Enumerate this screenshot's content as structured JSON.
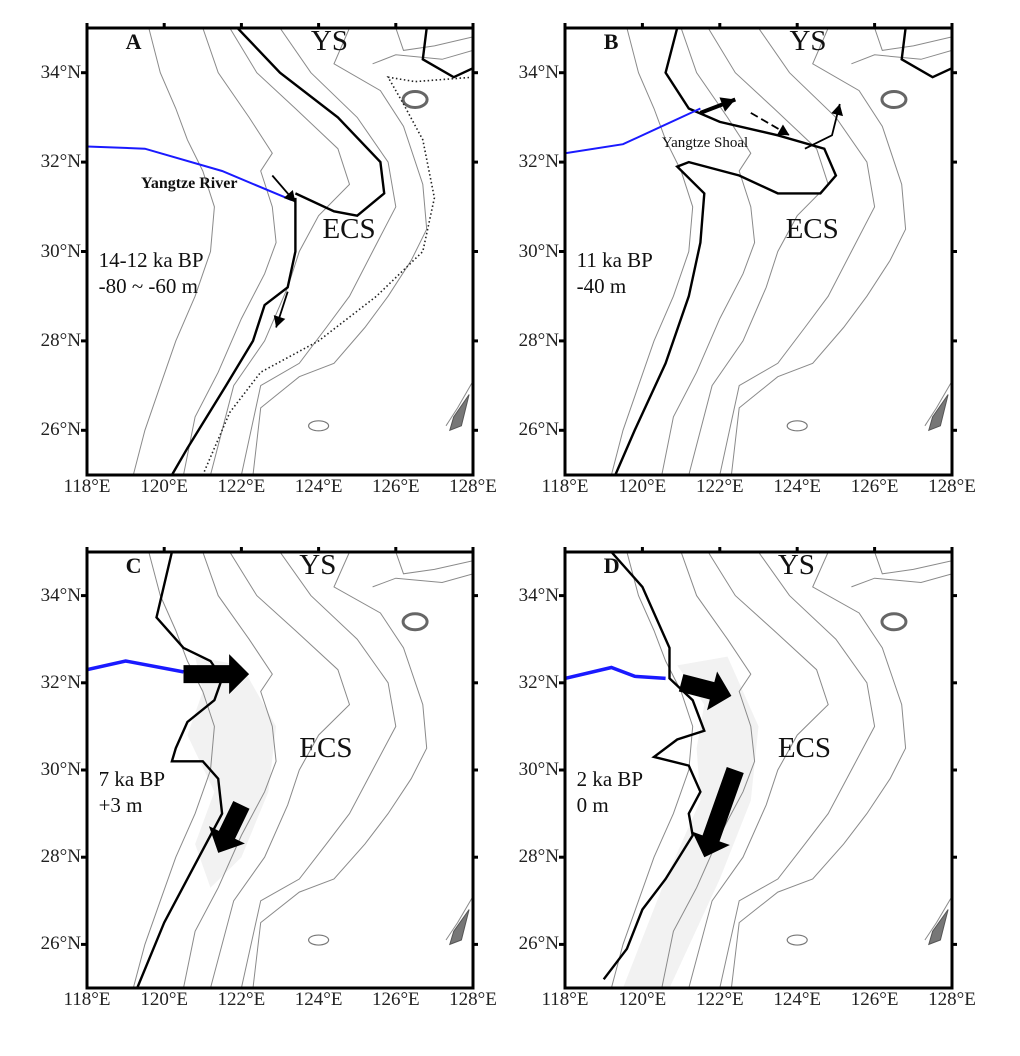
{
  "figure": {
    "lon_ticks": [
      "118°E",
      "120°E",
      "122°E",
      "124°E",
      "126°E",
      "128°E"
    ],
    "lat_ticks": [
      "34°N",
      "32°N",
      "30°N",
      "28°N",
      "26°N"
    ],
    "colors": {
      "river": "#1a1aff",
      "shoreline": "#000000",
      "contour": "#8a8a8a",
      "shelf_shade": "#f2f2f2"
    },
    "panels": [
      {
        "letter": "A",
        "sea_north": "YS",
        "sea_south": "ECS",
        "age": "14-12 ka BP",
        "sea_level": "-80 ~ -60 m",
        "river_label": "Yangtze River"
      },
      {
        "letter": "B",
        "sea_north": "YS",
        "sea_south": "ECS",
        "age": "11 ka BP",
        "sea_level": "-40 m",
        "shoal_label": "Yangtze Shoal"
      },
      {
        "letter": "C",
        "sea_north": "YS",
        "sea_south": "ECS",
        "age": "7 ka BP",
        "sea_level": "+3 m"
      },
      {
        "letter": "D",
        "sea_north": "YS",
        "sea_south": "ECS",
        "age": "2 ka BP",
        "sea_level": "0 m"
      }
    ]
  }
}
